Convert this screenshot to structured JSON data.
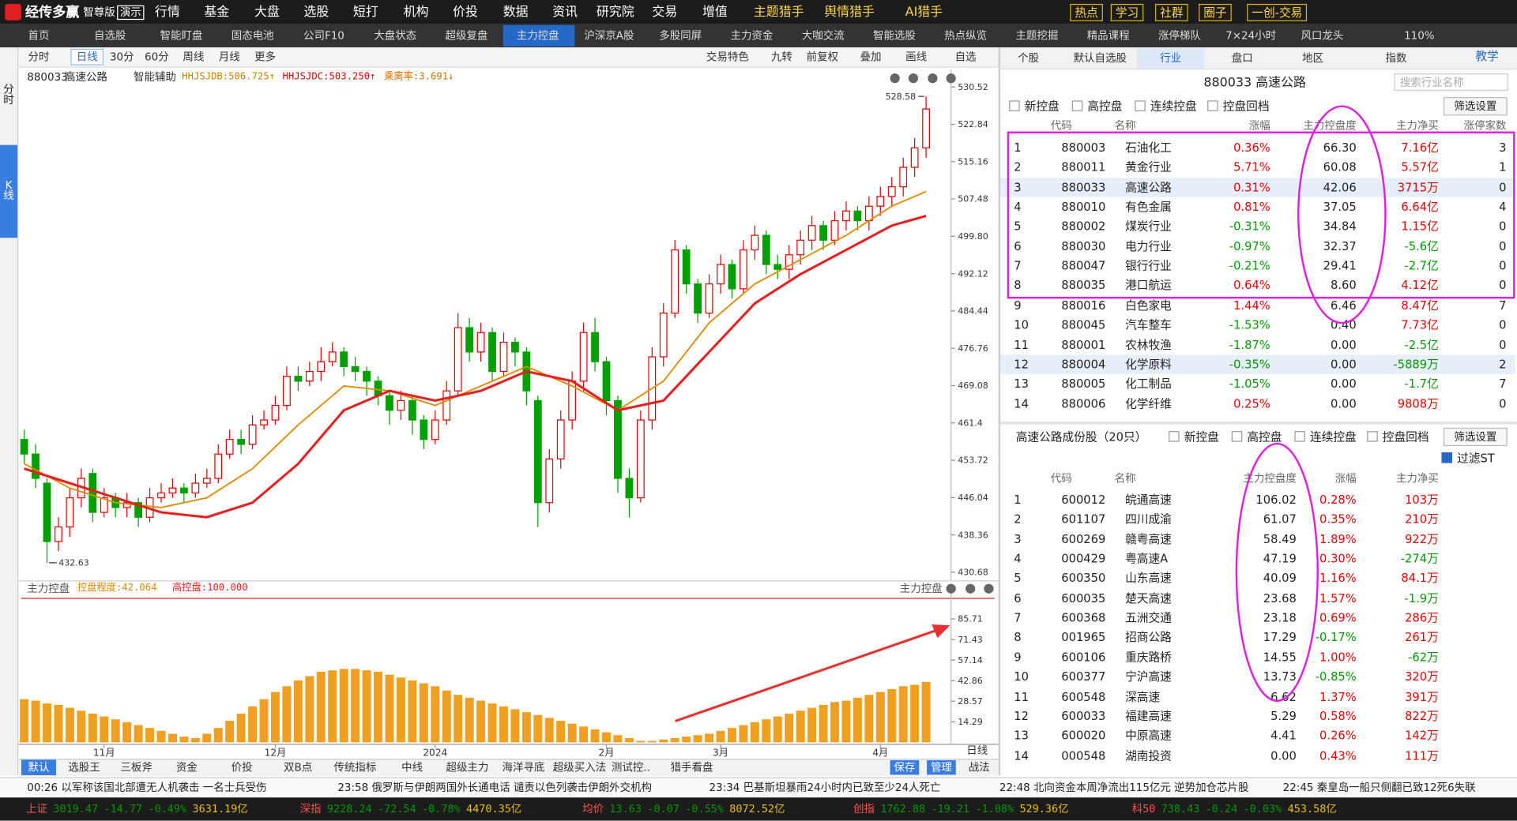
{
  "top_menu": {
    "logo": "经传多赢",
    "edition": "智尊版",
    "demo": "演示",
    "items": [
      "行情",
      "基金",
      "大盘",
      "选股",
      "短打",
      "机构",
      "价投",
      "数据",
      "资讯",
      "研究院",
      "交易",
      "增值",
      "主题猎手",
      "舆情猎手",
      "AI猎手"
    ],
    "buttons": [
      "热点",
      "学习",
      "社群",
      "圈子",
      "一创-交易"
    ]
  },
  "tabs": {
    "items": [
      "首页",
      "自选股",
      "智能盯盘",
      "固态电池",
      "公司F10",
      "大盘状态",
      "超级复盘",
      "主力控盘",
      "沪深京A股",
      "多股同屏",
      "主力资金",
      "大咖交流",
      "智能选股",
      "热点纵览",
      "主题挖掘",
      "精品课程",
      "涨停梯队",
      "7×24小时",
      "风口龙头"
    ],
    "active": 7,
    "zoom": "110%"
  },
  "side_tabs": [
    "分时",
    "K线"
  ],
  "chart_toolbar": {
    "periods": [
      "分时",
      "日线",
      "30分",
      "60分",
      "周线",
      "月线",
      "更多"
    ],
    "active": 1,
    "tools": [
      "交易特色",
      "九转",
      "前复权",
      "叠加",
      "画线",
      "自选"
    ]
  },
  "chart_info": {
    "code": "880033",
    "name": "高速公路",
    "assist": "智能辅助",
    "indicators": [
      "HHJSJDB:506.725↑",
      "HHJSJDC:503.250↑",
      "乘离率:3.691↓"
    ]
  },
  "chart_data": [
    {
      "type": "candlestick",
      "up_color": "#e60000",
      "down_color": "#00a000",
      "open": [
        458,
        455,
        449,
        437,
        440,
        446,
        451,
        443,
        446,
        444,
        445,
        442,
        446,
        447,
        448,
        447,
        449,
        450,
        455,
        458,
        457,
        461,
        462,
        465,
        471,
        470,
        472,
        474,
        476,
        473,
        472,
        470,
        467,
        464,
        466,
        462,
        458,
        462,
        468,
        481,
        476,
        480,
        472,
        478,
        476,
        466,
        445,
        454,
        462,
        470,
        480,
        474,
        466,
        450,
        446,
        462,
        475,
        484,
        497,
        490,
        484,
        490,
        494,
        489,
        497,
        500,
        494,
        493,
        496,
        499,
        502,
        499,
        503,
        505,
        503,
        506,
        508,
        510,
        514,
        518
      ],
      "close": [
        455,
        450,
        437,
        440,
        446,
        450,
        443,
        446,
        444,
        445,
        442,
        446,
        447,
        448,
        447,
        449,
        450,
        455,
        458,
        457,
        461,
        462,
        465,
        471,
        470,
        472,
        474,
        476,
        473,
        472,
        470,
        467,
        464,
        466,
        462,
        458,
        462,
        468,
        481,
        476,
        480,
        472,
        478,
        476,
        468,
        445,
        454,
        462,
        470,
        480,
        474,
        466,
        450,
        446,
        462,
        475,
        484,
        497,
        490,
        484,
        490,
        494,
        489,
        497,
        500,
        494,
        493,
        496,
        499,
        502,
        499,
        503,
        505,
        503,
        506,
        508,
        510,
        514,
        518,
        526
      ],
      "high": [
        460,
        457,
        450,
        442,
        448,
        452,
        452,
        448,
        447,
        447,
        446,
        448,
        449,
        450,
        449,
        451,
        452,
        457,
        460,
        460,
        463,
        464,
        467,
        473,
        473,
        474,
        477,
        478,
        477,
        475,
        473,
        471,
        468,
        468,
        467,
        463,
        464,
        470,
        484,
        483,
        482,
        481,
        480,
        479,
        477,
        467,
        456,
        464,
        472,
        482,
        483,
        475,
        467,
        452,
        464,
        477,
        486,
        499,
        498,
        491,
        492,
        496,
        495,
        499,
        502,
        501,
        496,
        498,
        501,
        504,
        503,
        505,
        507,
        506,
        508,
        510,
        512,
        516,
        520,
        528.58
      ],
      "low": [
        453,
        448,
        432.63,
        435,
        438,
        444,
        441,
        442,
        442,
        442,
        440,
        441,
        445,
        446,
        445,
        446,
        448,
        449,
        454,
        455,
        456,
        460,
        461,
        464,
        468,
        469,
        470,
        473,
        471,
        470,
        467,
        465,
        461,
        462,
        459,
        456,
        457,
        461,
        467,
        474,
        474,
        470,
        471,
        473,
        465,
        440,
        443,
        452,
        460,
        468,
        472,
        463,
        447,
        442,
        445,
        460,
        473,
        483,
        488,
        482,
        483,
        488,
        487,
        488,
        495,
        492,
        491,
        491,
        494,
        497,
        497,
        498,
        501,
        501,
        501,
        504,
        506,
        508,
        512,
        516
      ],
      "ma": [
        {
          "color": "#e08a00",
          "x": [
            0,
            4,
            8,
            12,
            16,
            20,
            24,
            28,
            32,
            36,
            40,
            44,
            48,
            52,
            56,
            60,
            64,
            68,
            72,
            76,
            79
          ],
          "values": [
            453,
            448,
            445,
            444,
            446,
            452,
            461,
            469,
            468,
            465,
            469,
            473,
            469,
            464,
            470,
            482,
            490,
            495,
            500,
            506,
            509
          ]
        },
        {
          "color": "#e62020",
          "x": [
            0,
            4,
            8,
            12,
            16,
            20,
            24,
            28,
            32,
            36,
            40,
            44,
            48,
            52,
            56,
            60,
            64,
            68,
            72,
            76,
            79
          ],
          "values": [
            452,
            449,
            446,
            443,
            442,
            445,
            453,
            464,
            468,
            466,
            468,
            472,
            470,
            464,
            466,
            476,
            486,
            492,
            497,
            502,
            504
          ]
        }
      ],
      "ylim": [
        430.68,
        530.52
      ],
      "yticks": [
        530.52,
        522.84,
        515.16,
        507.48,
        {
          "value": 499.8,
          "label": "499.80"
        },
        492.12,
        484.44,
        476.76,
        469.08,
        461.4,
        453.72,
        446.04,
        438.36,
        430.68
      ],
      "xticks": [
        {
          "value": 7,
          "label": "11月"
        },
        {
          "value": 22,
          "label": "12月"
        },
        {
          "value": 36,
          "label": "2024"
        },
        {
          "value": 51,
          "label": "2月"
        },
        {
          "value": 61,
          "label": "3月"
        },
        {
          "value": 75,
          "label": "4月"
        }
      ],
      "period": "日线"
    },
    {
      "type": "bar",
      "title": "主力控盘",
      "right_title": "主力控盘",
      "legend": [
        "控盘程度:42.064",
        "高控盘:100.000"
      ],
      "color": "#f0a020",
      "line_color": "#e62020",
      "values": [
        30,
        29,
        27,
        26,
        24,
        22,
        20,
        18,
        16,
        14,
        12,
        10,
        8,
        6,
        4,
        3,
        6,
        10,
        15,
        20,
        25,
        30,
        35,
        39,
        43,
        46,
        49,
        50,
        51,
        51,
        50,
        49,
        47,
        45,
        43,
        41,
        39,
        36,
        33,
        31,
        29,
        27,
        25,
        23,
        21,
        19,
        17,
        15,
        13,
        11,
        9,
        7,
        5,
        3,
        1,
        1,
        2,
        3,
        4,
        5,
        6,
        8,
        10,
        12,
        14,
        16,
        18,
        20,
        22,
        24,
        26,
        28,
        29,
        31,
        33,
        35,
        37,
        39,
        40,
        42
      ],
      "ylim": [
        0,
        100
      ],
      "yticks": [
        85.71,
        71.43,
        57.14,
        42.86,
        28.57,
        14.29
      ]
    }
  ],
  "indicator_tabs": {
    "items": [
      "默认",
      "选股王",
      "三板斧",
      "资金",
      "价投",
      "双B点",
      "传统指标",
      "中线",
      "超级主力",
      "海洋寻底",
      "超级买入法",
      "测试控..",
      "猎手看盘"
    ],
    "active": 0,
    "actions": [
      "保存",
      "管理",
      "战法"
    ]
  },
  "news": [
    "00:26 以军称该国北部遭无人机袭击 一名士兵受伤",
    "23:58 俄罗斯与伊朗两国外长通电话 谴责以色列袭击伊朗外交机构",
    "23:34 巴基斯坦暴雨24小时内已致至少24人死亡",
    "22:48 北向资金本周净流出115亿元 逆势加仓芯片股",
    "22:45 秦皇岛一船只侧翻已致12死6失联"
  ],
  "indices": [
    {
      "name": "上证",
      "price": "3019.47",
      "change": "-14.77",
      "pct": "-0.49%",
      "amount": "3631.19亿"
    },
    {
      "name": "深指",
      "price": "9228.24",
      "change": "-72.54",
      "pct": "-0.78%",
      "amount": "4470.35亿"
    },
    {
      "name": "均价",
      "price": "13.63",
      "change": "-0.07",
      "pct": "-0.55%",
      "amount": "8072.52亿"
    },
    {
      "name": "创指",
      "price": "1762.88",
      "change": "-19.21",
      "pct": "-1.08%",
      "amount": "529.36亿"
    },
    {
      "name": "科50",
      "price": "738.43",
      "change": "-0.24",
      "pct": "-0.03%",
      "amount": "453.58亿"
    }
  ],
  "right_panel": {
    "tabs": [
      "个股",
      "默认自选股",
      "行业",
      "盘口",
      "地区",
      "指数"
    ],
    "active": 2,
    "help": "教学",
    "title": "880033  高速公路",
    "search": "搜索行业名称",
    "filters": [
      "新控盘",
      "高控盘",
      "连续控盘",
      "控盘回档"
    ],
    "filter_button": "筛选设置",
    "industry_table": {
      "header": [
        "代码",
        "名称",
        "涨幅",
        "主力控盘度",
        "主力净买",
        "涨停家数"
      ],
      "highlight": [
        2,
        11
      ],
      "rows": [
        [
          "1",
          "880003",
          "石油化工",
          "0.36%",
          "66.30",
          "7.16亿",
          "3"
        ],
        [
          "2",
          "880011",
          "黄金行业",
          "5.71%",
          "60.08",
          "5.57亿",
          "1"
        ],
        [
          "3",
          "880033",
          "高速公路",
          "0.31%",
          "42.06",
          "3715万",
          "0"
        ],
        [
          "4",
          "880010",
          "有色金属",
          "0.81%",
          "37.05",
          "6.64亿",
          "4"
        ],
        [
          "5",
          "880002",
          "煤炭行业",
          "-0.31%",
          "34.84",
          "1.15亿",
          "0"
        ],
        [
          "6",
          "880030",
          "电力行业",
          "-0.97%",
          "32.37",
          "-5.6亿",
          "0"
        ],
        [
          "7",
          "880047",
          "银行行业",
          "-0.21%",
          "29.41",
          "-2.7亿",
          "0"
        ],
        [
          "8",
          "880035",
          "港口航运",
          "0.64%",
          "8.60",
          "4.12亿",
          "0"
        ],
        [
          "9",
          "880016",
          "白色家电",
          "1.44%",
          "6.46",
          "8.47亿",
          "7"
        ],
        [
          "10",
          "880045",
          "汽车整车",
          "-1.53%",
          "0.40",
          "7.73亿",
          "0"
        ],
        [
          "11",
          "880001",
          "农林牧渔",
          "-1.87%",
          "0.00",
          "-2.5亿",
          "0"
        ],
        [
          "12",
          "880004",
          "化学原料",
          "-0.35%",
          "0.00",
          "-5889万",
          "2"
        ],
        [
          "13",
          "880005",
          "化工制品",
          "-1.05%",
          "0.00",
          "-1.7亿",
          "7"
        ],
        [
          "14",
          "880006",
          "化学纤维",
          "0.25%",
          "0.00",
          "9808万",
          "0"
        ]
      ]
    },
    "constituents": {
      "title": "高速公路成份股（20只）",
      "filters": [
        "新控盘",
        "高控盘",
        "连续控盘",
        "控盘回档"
      ],
      "filter_button": "筛选设置",
      "st_filter": "过滤ST",
      "header": [
        "代码",
        "名称",
        "主力控盘度",
        "涨幅",
        "主力净买"
      ],
      "rows": [
        [
          "1",
          "600012",
          "皖通高速",
          "106.02",
          "0.28%",
          "103万"
        ],
        [
          "2",
          "601107",
          "四川成渝",
          "61.07",
          "0.35%",
          "210万"
        ],
        [
          "3",
          "600269",
          "赣粤高速",
          "58.49",
          "1.89%",
          "922万"
        ],
        [
          "4",
          "000429",
          "粤高速A",
          "47.19",
          "0.30%",
          "-274万"
        ],
        [
          "5",
          "600350",
          "山东高速",
          "40.09",
          "1.16%",
          "84.1万"
        ],
        [
          "6",
          "600035",
          "楚天高速",
          "23.68",
          "1.57%",
          "-1.9万"
        ],
        [
          "7",
          "600368",
          "五洲交通",
          "23.18",
          "0.69%",
          "286万"
        ],
        [
          "8",
          "001965",
          "招商公路",
          "17.29",
          "-0.17%",
          "261万"
        ],
        [
          "9",
          "600106",
          "重庆路桥",
          "14.55",
          "1.00%",
          "-62万"
        ],
        [
          "10",
          "600377",
          "宁沪高速",
          "13.73",
          "-0.85%",
          "320万"
        ],
        [
          "11",
          "600548",
          "深高速",
          "6.62",
          "1.37%",
          "391万"
        ],
        [
          "12",
          "600033",
          "福建高速",
          "5.29",
          "0.58%",
          "822万"
        ],
        [
          "13",
          "600020",
          "中原高速",
          "4.41",
          "0.26%",
          "142万"
        ],
        [
          "14",
          "000548",
          "湖南投资",
          "0.00",
          "0.43%",
          "111万"
        ]
      ]
    }
  }
}
